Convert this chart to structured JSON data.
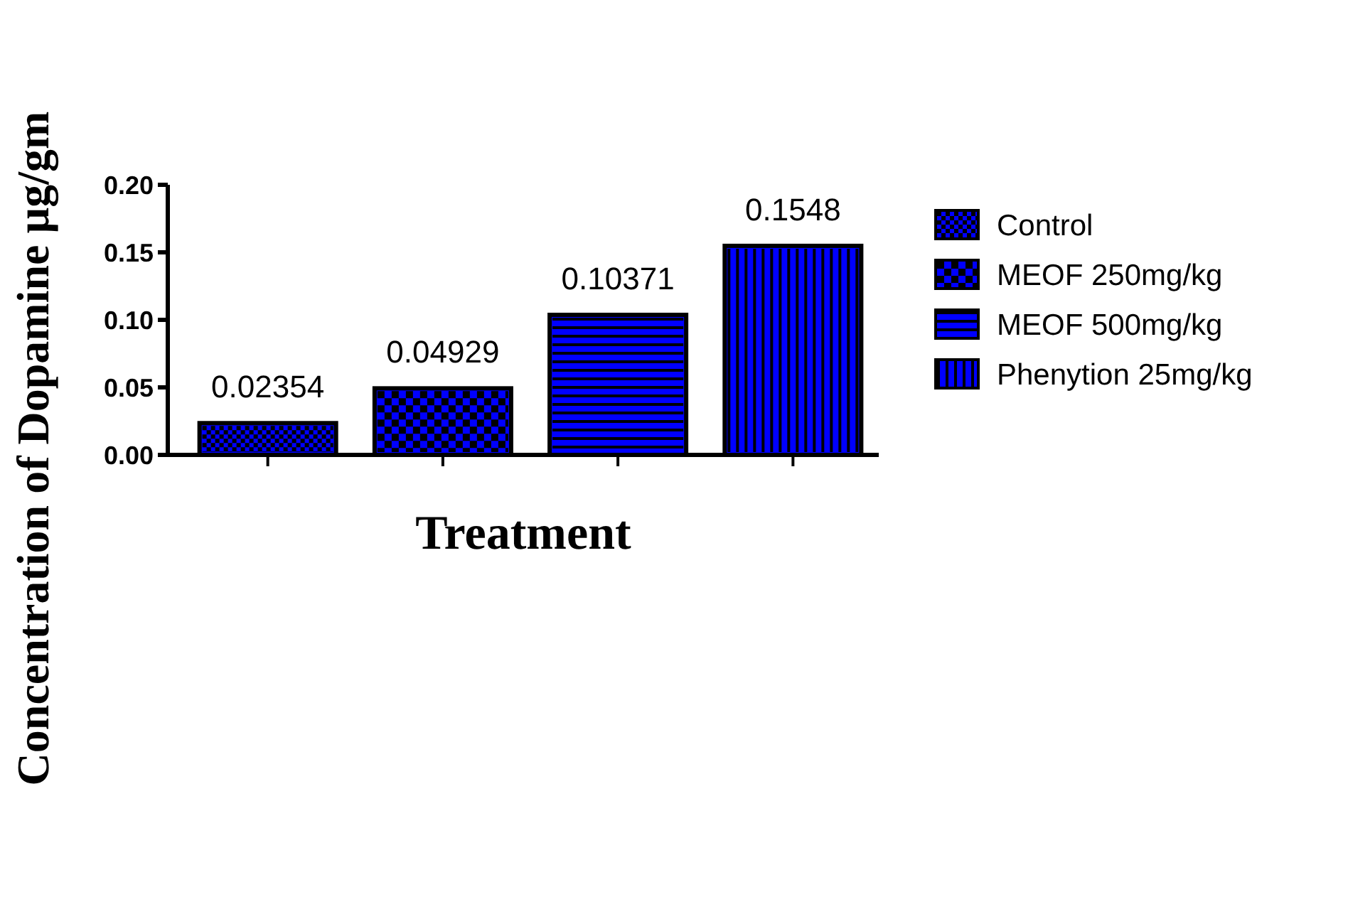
{
  "chart_data": {
    "type": "bar",
    "xlabel": "Treatment",
    "ylabel": "Concentration of Dopamine µg/gm",
    "categories": [
      null,
      null,
      null,
      null
    ],
    "series": [
      {
        "name": "Control",
        "color": "#0000ff",
        "values": [
          0.02354,
          null,
          null,
          null
        ]
      },
      {
        "name": "MEOF 250mg/kg",
        "color": "#0000ff",
        "values": [
          null,
          0.04929,
          null,
          null
        ]
      },
      {
        "name": "MEOF 500mg/kg",
        "color": "#0000ff",
        "values": [
          null,
          null,
          0.10371,
          null
        ]
      },
      {
        "name": "Phenytion 25mg/kg",
        "color": "#0000ff",
        "values": [
          null,
          null,
          null,
          0.1548
        ]
      }
    ],
    "ylim": [
      0,
      0.2
    ],
    "yticks": [
      {
        "value": 0,
        "label": "0.00"
      },
      {
        "value": 0.05,
        "label": "0.05"
      },
      {
        "value": 0.1,
        "label": "0.10"
      },
      {
        "value": 0.15,
        "label": "0.15"
      },
      {
        "value": 0.2,
        "label": "0.20"
      }
    ],
    "data_labels": true,
    "legend": "right",
    "grid": false
  }
}
